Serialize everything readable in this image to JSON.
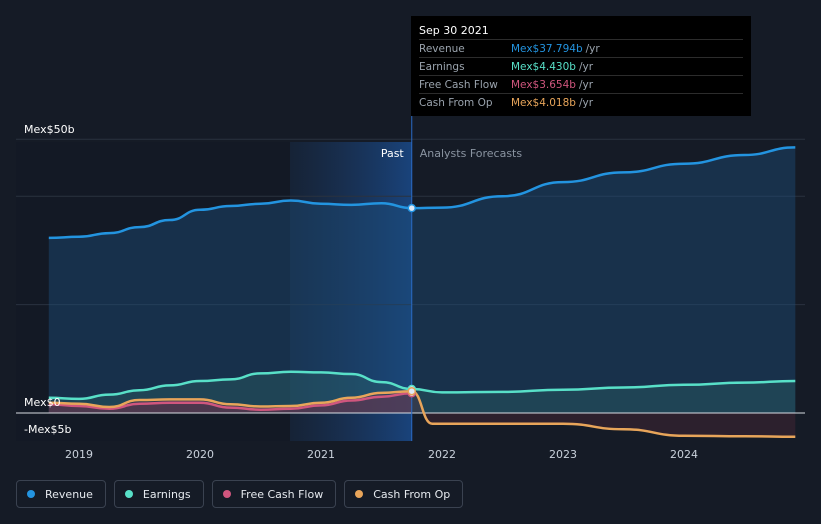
{
  "tooltip": {
    "date": "Sep 30 2021",
    "rows": [
      {
        "label": "Revenue",
        "value": "Mex$37.794b",
        "unit": "/yr",
        "color": "#2394e0"
      },
      {
        "label": "Earnings",
        "value": "Mex$4.430b",
        "unit": "/yr",
        "color": "#58e0c8"
      },
      {
        "label": "Free Cash Flow",
        "value": "Mex$3.654b",
        "unit": "/yr",
        "color": "#d0567e"
      },
      {
        "label": "Cash From Op",
        "value": "Mex$4.018b",
        "unit": "/yr",
        "color": "#e8a55a"
      }
    ]
  },
  "labels": {
    "past": "Past",
    "forecast": "Analysts Forecasts",
    "y_top": "Mex$50b",
    "y_zero": "Mex$0",
    "y_neg": "-Mex$5b"
  },
  "legend": [
    {
      "label": "Revenue",
      "color": "#2394e0"
    },
    {
      "label": "Earnings",
      "color": "#58e0c8"
    },
    {
      "label": "Free Cash Flow",
      "color": "#d0567e"
    },
    {
      "label": "Cash From Op",
      "color": "#e8a55a"
    }
  ],
  "chart_data": {
    "type": "line",
    "ylim": [
      -5,
      50
    ],
    "y_ticks": [
      "Mex$50b",
      "Mex$0",
      "-Mex$5b"
    ],
    "x_ticks": [
      "2019",
      "2020",
      "2021",
      "2022",
      "2023",
      "2024"
    ],
    "past_end": 2021.75,
    "series": [
      {
        "name": "Revenue",
        "color": "#2394e0",
        "x": [
          2018.75,
          2019.0,
          2019.25,
          2019.5,
          2019.75,
          2020.0,
          2020.25,
          2020.5,
          2020.75,
          2021.0,
          2021.25,
          2021.5,
          2021.75,
          2022.0,
          2022.5,
          2023.0,
          2023.5,
          2024.0,
          2024.5,
          2024.92
        ],
        "y": [
          32.3,
          32.5,
          33.2,
          34.3,
          35.6,
          37.5,
          38.2,
          38.6,
          39.2,
          38.6,
          38.4,
          38.7,
          37.8,
          37.9,
          40.0,
          42.6,
          44.4,
          46.0,
          47.6,
          49.0
        ]
      },
      {
        "name": "Earnings",
        "color": "#58e0c8",
        "x": [
          2018.75,
          2019.0,
          2019.25,
          2019.5,
          2019.75,
          2020.0,
          2020.25,
          2020.5,
          2020.75,
          2021.0,
          2021.25,
          2021.5,
          2021.75,
          2022.0,
          2022.5,
          2023.0,
          2023.5,
          2024.0,
          2024.5,
          2024.92
        ],
        "y": [
          2.8,
          2.6,
          3.4,
          4.2,
          5.1,
          5.9,
          6.2,
          7.3,
          7.6,
          7.5,
          7.2,
          5.7,
          4.43,
          3.8,
          3.9,
          4.3,
          4.7,
          5.2,
          5.6,
          5.9
        ]
      },
      {
        "name": "Free Cash Flow",
        "color": "#d0567e",
        "x": [
          2018.75,
          2019.0,
          2019.25,
          2019.5,
          2019.75,
          2020.0,
          2020.25,
          2020.5,
          2020.75,
          2021.0,
          2021.25,
          2021.5,
          2021.75
        ],
        "y": [
          1.6,
          1.3,
          0.8,
          1.7,
          1.9,
          1.9,
          1.0,
          0.6,
          0.8,
          1.4,
          2.3,
          3.0,
          3.654
        ]
      },
      {
        "name": "Cash From Op",
        "color": "#e8a55a",
        "x": [
          2018.75,
          2019.0,
          2019.25,
          2019.5,
          2019.75,
          2020.0,
          2020.25,
          2020.5,
          2020.75,
          2021.0,
          2021.25,
          2021.5,
          2021.75,
          2021.92,
          2022.5,
          2023.0,
          2023.5,
          2024.0,
          2024.5,
          2024.92
        ],
        "y": [
          1.9,
          1.7,
          1.1,
          2.4,
          2.5,
          2.5,
          1.6,
          1.2,
          1.3,
          1.9,
          2.8,
          3.7,
          4.018,
          -2.0,
          -2.0,
          -2.0,
          -3.0,
          -4.2,
          -4.3,
          -4.4
        ]
      }
    ]
  }
}
